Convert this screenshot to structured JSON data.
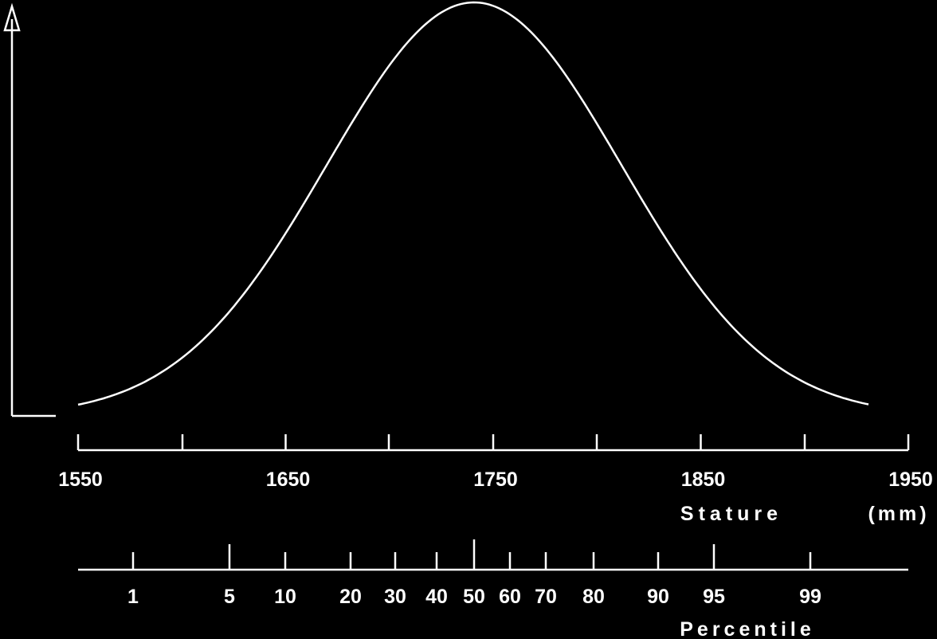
{
  "stature": {
    "ticks": [
      1550,
      1650,
      1750,
      1850,
      1950
    ],
    "xlim": [
      1550,
      1950
    ],
    "label": "Stature",
    "unit": "(mm)"
  },
  "percentile": {
    "ticks": [
      1,
      5,
      10,
      20,
      30,
      40,
      50,
      60,
      70,
      80,
      90,
      95,
      99
    ],
    "label": "Percentile"
  }
}
